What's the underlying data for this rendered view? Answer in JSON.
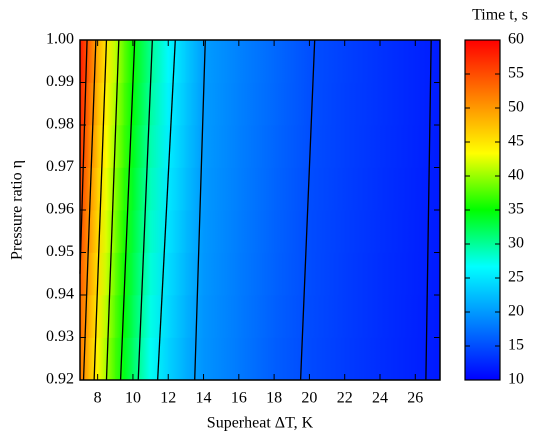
{
  "chart_data": {
    "type": "contour",
    "xlabel": "Superheat ΔT, K",
    "ylabel": "Pressure ratio η",
    "colorbar_title": "Time t, s",
    "xlim": [
      7,
      27.4
    ],
    "ylim": [
      0.92,
      1.0
    ],
    "xticks": [
      8,
      10,
      12,
      14,
      16,
      18,
      20,
      22,
      24,
      26
    ],
    "yticks": [
      0.92,
      0.93,
      0.94,
      0.95,
      0.96,
      0.97,
      0.98,
      0.99,
      {
        "value": 1.0,
        "label": "1.00"
      }
    ],
    "clim": [
      10,
      60
    ],
    "colorbar_ticks": [
      10,
      15,
      20,
      25,
      30,
      35,
      40,
      45,
      50,
      55,
      60
    ],
    "colormap": [
      "#0000ff",
      "#0080ff",
      "#00ffff",
      "#00ff00",
      "#ffff00",
      "#ff8000",
      "#ff0000"
    ],
    "contour_color": "#000000",
    "x": [
      7,
      7.5,
      8,
      8.5,
      9,
      9.5,
      10,
      11,
      12,
      13,
      14,
      16,
      18,
      20,
      22,
      24,
      27.4
    ],
    "y": [
      0.92,
      1.0
    ],
    "z": [
      [
        52,
        47.5,
        43.6,
        40,
        36.9,
        34,
        31.5,
        26.8,
        23.6,
        21.2,
        19.6,
        17.9,
        16.1,
        14.8,
        13.8,
        12.9,
        11.6
      ],
      [
        59,
        54,
        49,
        45,
        41.5,
        38.3,
        35.5,
        30.5,
        26.5,
        23.4,
        20.3,
        18.5,
        16.9,
        15.2,
        14.2,
        13.3,
        11.8
      ]
    ],
    "contours": [
      {
        "x": [
          7.4,
          7.0
        ],
        "y": [
          1.0,
          0.945
        ]
      },
      {
        "x": [
          7.9,
          7.2
        ],
        "y": [
          1.0,
          0.92
        ]
      },
      {
        "x": [
          8.5,
          7.8
        ],
        "y": [
          1.0,
          0.92
        ]
      },
      {
        "x": [
          9.2,
          8.5
        ],
        "y": [
          1.0,
          0.92
        ]
      },
      {
        "x": [
          10.1,
          9.3
        ],
        "y": [
          1.0,
          0.92
        ]
      },
      {
        "x": [
          11.1,
          10.3
        ],
        "y": [
          1.0,
          0.92
        ]
      },
      {
        "x": [
          12.4,
          11.4
        ],
        "y": [
          1.0,
          0.92
        ]
      },
      {
        "x": [
          14.1,
          13.5
        ],
        "y": [
          1.0,
          0.92
        ]
      },
      {
        "x": [
          20.3,
          19.5
        ],
        "y": [
          1.0,
          0.92
        ]
      },
      {
        "x": [
          26.9,
          26.6
        ],
        "y": [
          1.0,
          0.92
        ]
      }
    ]
  }
}
